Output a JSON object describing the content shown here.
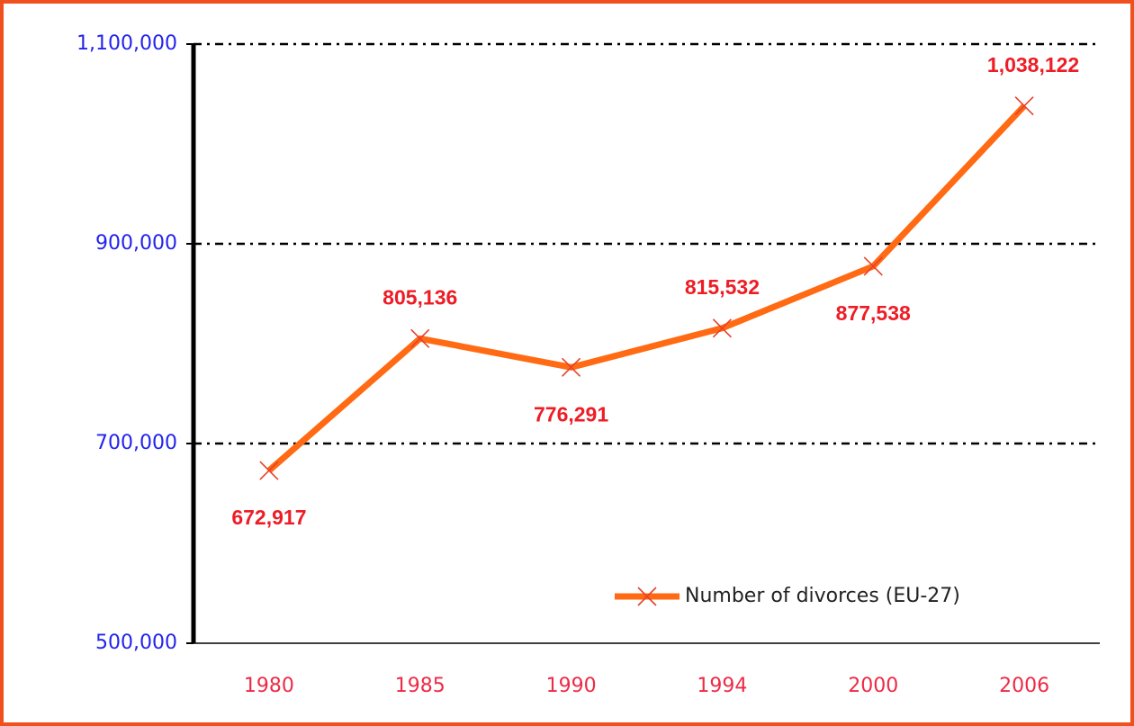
{
  "chart_data": {
    "type": "line",
    "categories": [
      "1980",
      "1985",
      "1990",
      "1994",
      "2000",
      "2006"
    ],
    "series": [
      {
        "name": "Number of divorces (EU-27)",
        "color": "#ff6a13",
        "values": [
          672917,
          805136,
          776291,
          815532,
          877538,
          1038122
        ],
        "value_labels": [
          "672,917",
          "805,136",
          "776,291",
          "815,532",
          "877,538",
          "1,038,122"
        ]
      }
    ],
    "ylim": [
      500000,
      1100000
    ],
    "yticks": [
      {
        "value": 500000,
        "label": "500,000"
      },
      {
        "value": 700000,
        "label": "700,000"
      },
      {
        "value": 900000,
        "label": "900,000"
      },
      {
        "value": 1100000,
        "label": "1,100,000"
      }
    ],
    "grid": true,
    "legend": "lower right"
  }
}
